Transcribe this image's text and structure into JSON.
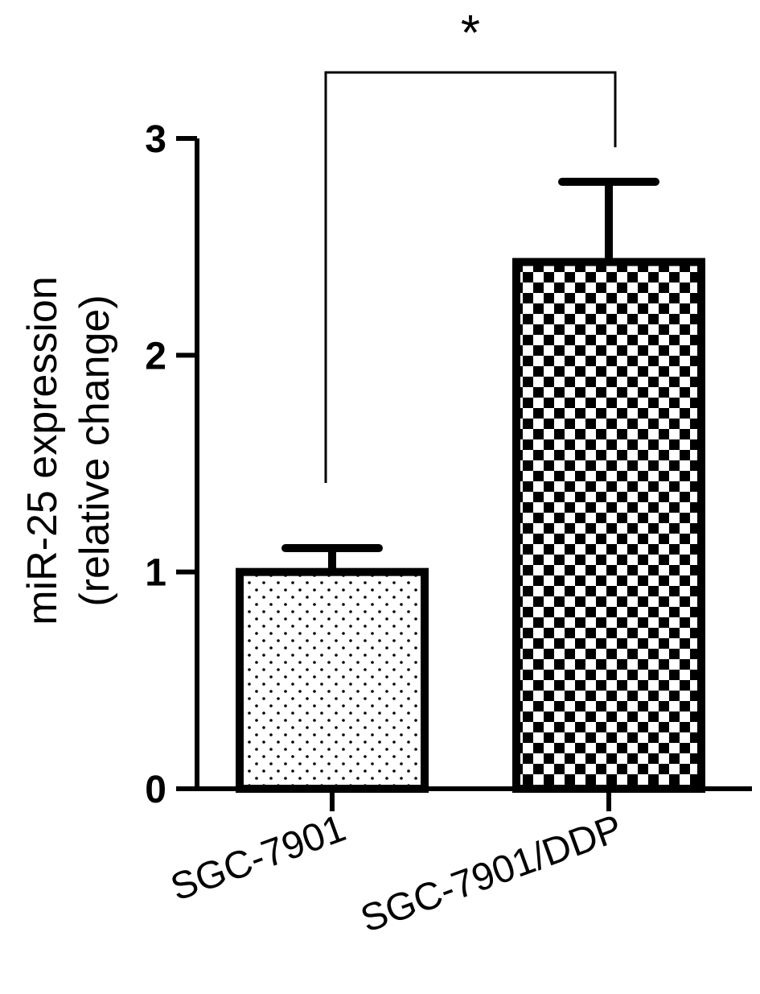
{
  "chart_data": {
    "type": "bar",
    "categories": [
      "SGC-7901",
      "SGC-7901/DDP"
    ],
    "values": [
      1.0,
      2.43
    ],
    "error_upper": [
      1.11,
      2.8
    ],
    "ylabel_lines": [
      "miR-25 expression",
      "(relative change)"
    ],
    "ylim": [
      0,
      3
    ],
    "yticks": [
      0,
      1,
      2,
      3
    ],
    "bar_fills": [
      "dotted",
      "checkered"
    ],
    "significance": {
      "between": [
        0,
        1
      ],
      "label": "*"
    },
    "grid": false
  }
}
